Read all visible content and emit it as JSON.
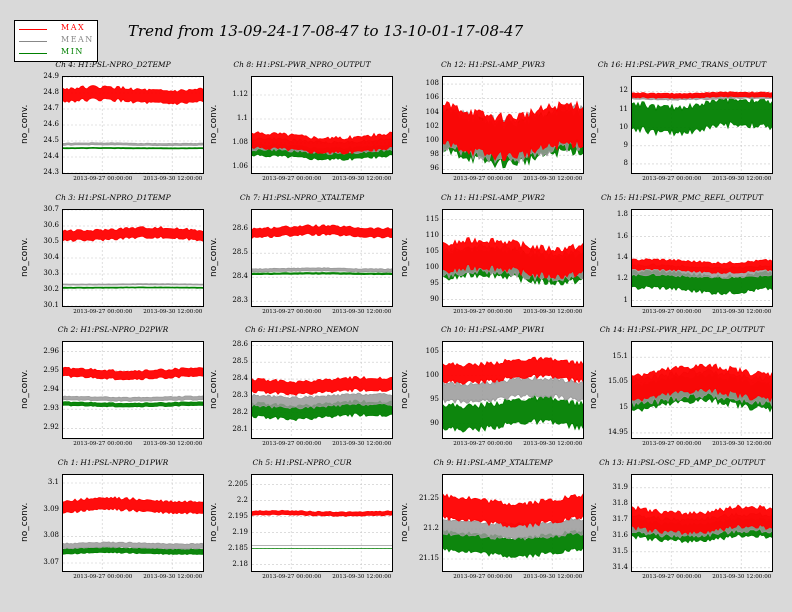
{
  "title": "Trend from 13-09-24-17-08-47 to 13-10-01-17-08-47",
  "legend": [
    {
      "label": "MAX",
      "color": "#ff0000"
    },
    {
      "label": "MEAN",
      "color": "#888888"
    },
    {
      "label": "MIN",
      "color": "#008000"
    }
  ],
  "colors": {
    "max": "#ff0000",
    "mean": "#999999",
    "min": "#008000",
    "background": "#d9d9d9"
  },
  "chart_data": [
    {
      "type": "line",
      "title": "Ch 4: H1:PSL-NPRO_D2TEMP",
      "ylabel": "no_conv.",
      "xticks": [
        "2013-09-27 00:00:00",
        "2013-09-30 12:00:00"
      ],
      "yticks": [
        "24.3",
        "24.4",
        "24.5",
        "24.6",
        "24.7",
        "24.8",
        "24.9"
      ],
      "ylim": [
        24.3,
        24.9
      ],
      "grid": true,
      "series": [
        {
          "name": "MAX",
          "low": 24.72,
          "high": 24.85
        },
        {
          "name": "MEAN",
          "low": 24.47,
          "high": 24.49
        },
        {
          "name": "MIN",
          "low": 24.45,
          "high": 24.46
        }
      ]
    },
    {
      "type": "line",
      "title": "Ch 8: H1:PSL-PWR_NPRO_OUTPUT",
      "ylabel": "no_conv.",
      "xticks": [
        "2013-09-27 00:00:00",
        "2013-09-30 12:00:00"
      ],
      "yticks": [
        "1.06",
        "1.08",
        "1.1",
        "1.12"
      ],
      "ylim": [
        1.055,
        1.135
      ],
      "grid": true,
      "series": [
        {
          "name": "MAX",
          "low": 1.07,
          "high": 1.09
        },
        {
          "name": "MEAN",
          "low": 1.07,
          "high": 1.085
        },
        {
          "name": "MIN",
          "low": 1.065,
          "high": 1.08
        }
      ]
    },
    {
      "type": "line",
      "title": "Ch 12: H1:PSL-AMP_PWR3",
      "ylabel": "no_conv.",
      "xticks": [
        "2013-09-27 00:00:00",
        "2013-09-30 12:00:00"
      ],
      "yticks": [
        "96",
        "98",
        "100",
        "102",
        "104",
        "106",
        "108"
      ],
      "ylim": [
        95.5,
        109
      ],
      "grid": true,
      "series": [
        {
          "name": "MAX",
          "low": 97,
          "high": 106
        },
        {
          "name": "MEAN",
          "low": 96.5,
          "high": 105.5
        },
        {
          "name": "MIN",
          "low": 96,
          "high": 105
        }
      ]
    },
    {
      "type": "line",
      "title": "Ch 16: H1:PSL-PWR_PMC_TRANS_OUTPUT",
      "ylabel": "no_conv.",
      "xticks": [
        "2013-09-27 00:00:00",
        "2013-09-30 12:00:00"
      ],
      "yticks": [
        "8",
        "9",
        "10",
        "11",
        "12"
      ],
      "ylim": [
        7.5,
        12.8
      ],
      "grid": true,
      "series": [
        {
          "name": "MAX",
          "low": 11.6,
          "high": 12.0
        },
        {
          "name": "MEAN",
          "low": 11.5,
          "high": 11.9
        },
        {
          "name": "MIN",
          "low": 9.5,
          "high": 11.8
        }
      ]
    },
    {
      "type": "line",
      "title": "Ch 3: H1:PSL-NPRO_D1TEMP",
      "ylabel": "no_conv.",
      "xticks": [
        "2013-09-27 00:00:00",
        "2013-09-30 12:00:00"
      ],
      "yticks": [
        "30.1",
        "30.2",
        "30.3",
        "30.4",
        "30.5",
        "30.6",
        "30.7"
      ],
      "ylim": [
        30.1,
        30.7
      ],
      "grid": true,
      "series": [
        {
          "name": "MAX",
          "low": 30.5,
          "high": 30.6
        },
        {
          "name": "MEAN",
          "low": 30.23,
          "high": 30.24
        },
        {
          "name": "MIN",
          "low": 30.21,
          "high": 30.22
        }
      ]
    },
    {
      "type": "line",
      "title": "Ch 7: H1:PSL-NPRO_XTALTEMP",
      "ylabel": "no_conv.",
      "xticks": [
        "2013-09-27 00:00:00",
        "2013-09-30 12:00:00"
      ],
      "yticks": [
        "28.3",
        "28.4",
        "28.5",
        "28.6"
      ],
      "ylim": [
        28.28,
        28.68
      ],
      "grid": true,
      "series": [
        {
          "name": "MAX",
          "low": 28.56,
          "high": 28.62
        },
        {
          "name": "MEAN",
          "low": 28.42,
          "high": 28.44
        },
        {
          "name": "MIN",
          "low": 28.41,
          "high": 28.42
        }
      ]
    },
    {
      "type": "line",
      "title": "Ch 11: H1:PSL-AMP_PWR2",
      "ylabel": "no_conv.",
      "xticks": [
        "2013-09-27 00:00:00",
        "2013-09-30 12:00:00"
      ],
      "yticks": [
        "90",
        "95",
        "100",
        "105",
        "110",
        "115"
      ],
      "ylim": [
        88,
        118
      ],
      "grid": true,
      "series": [
        {
          "name": "MAX",
          "low": 96,
          "high": 110
        },
        {
          "name": "MEAN",
          "low": 95,
          "high": 108
        },
        {
          "name": "MIN",
          "low": 94,
          "high": 107
        }
      ]
    },
    {
      "type": "line",
      "title": "Ch 15: H1:PSL-PWR_PMC_REFL_OUTPUT",
      "ylabel": "no_conv.",
      "xticks": [
        "2013-09-27 00:00:00",
        "2013-09-30 12:00:00"
      ],
      "yticks": [
        "1",
        "1.2",
        "1.4",
        "1.6",
        "1.8"
      ],
      "ylim": [
        0.95,
        1.85
      ],
      "grid": true,
      "series": [
        {
          "name": "MAX",
          "low": 1.25,
          "high": 1.4
        },
        {
          "name": "MEAN",
          "low": 1.2,
          "high": 1.35
        },
        {
          "name": "MIN",
          "low": 1.05,
          "high": 1.3
        }
      ]
    },
    {
      "type": "line",
      "title": "Ch 2: H1:PSL-NPRO_D2PWR",
      "ylabel": "no_conv.",
      "xticks": [
        "2013-09-27 00:00:00",
        "2013-09-30 12:00:00"
      ],
      "yticks": [
        "2.92",
        "2.93",
        "2.94",
        "2.95",
        "2.96"
      ],
      "ylim": [
        2.915,
        2.965
      ],
      "grid": true,
      "series": [
        {
          "name": "MAX",
          "low": 2.945,
          "high": 2.952
        },
        {
          "name": "MEAN",
          "low": 2.934,
          "high": 2.937
        },
        {
          "name": "MIN",
          "low": 2.931,
          "high": 2.934
        }
      ]
    },
    {
      "type": "line",
      "title": "Ch 6: H1:PSL-NPRO_NEMON",
      "ylabel": "no_conv.",
      "xticks": [
        "2013-09-27 00:00:00",
        "2013-09-30 12:00:00"
      ],
      "yticks": [
        "28.1",
        "28.2",
        "28.3",
        "28.4",
        "28.5",
        "28.6"
      ],
      "ylim": [
        28.05,
        28.62
      ],
      "grid": true,
      "series": [
        {
          "name": "MAX",
          "low": 28.3,
          "high": 28.42
        },
        {
          "name": "MEAN",
          "low": 28.22,
          "high": 28.32
        },
        {
          "name": "MIN",
          "low": 28.15,
          "high": 28.28
        }
      ]
    },
    {
      "type": "line",
      "title": "Ch 10: H1:PSL-AMP_PWR1",
      "ylabel": "no_conv.",
      "xticks": [
        "2013-09-27 00:00:00",
        "2013-09-30 12:00:00"
      ],
      "yticks": [
        "90",
        "95",
        "100",
        "105"
      ],
      "ylim": [
        87,
        107
      ],
      "grid": true,
      "series": [
        {
          "name": "MAX",
          "low": 98,
          "high": 104
        },
        {
          "name": "MEAN",
          "low": 94,
          "high": 100
        },
        {
          "name": "MIN",
          "low": 88,
          "high": 96
        }
      ]
    },
    {
      "type": "line",
      "title": "Ch 14: H1:PSL-PWR_HPL_DC_LP_OUTPUT",
      "ylabel": "no_conv.",
      "xticks": [
        "2013-09-27 00:00:00",
        "2013-09-30 12:00:00"
      ],
      "yticks": [
        "14.95",
        "15",
        "15.05",
        "15.1"
      ],
      "ylim": [
        14.94,
        15.13
      ],
      "grid": true,
      "series": [
        {
          "name": "MAX",
          "low": 15.01,
          "high": 15.09
        },
        {
          "name": "MEAN",
          "low": 15.0,
          "high": 15.08
        },
        {
          "name": "MIN",
          "low": 14.99,
          "high": 15.07
        }
      ]
    },
    {
      "type": "line",
      "title": "Ch 1: H1:PSL-NPRO_D1PWR",
      "ylabel": "no_conv.",
      "xticks": [
        "2013-09-27 00:00:00",
        "2013-09-30 12:00:00"
      ],
      "yticks": [
        "3.07",
        "3.08",
        "3.09",
        "3.1"
      ],
      "ylim": [
        3.067,
        3.103
      ],
      "grid": true,
      "series": [
        {
          "name": "MAX",
          "low": 3.088,
          "high": 3.095
        },
        {
          "name": "MEAN",
          "low": 3.075,
          "high": 3.078
        },
        {
          "name": "MIN",
          "low": 3.073,
          "high": 3.076
        }
      ]
    },
    {
      "type": "line",
      "title": "Ch 5: H1:PSL-NPRO_CUR",
      "ylabel": "no_conv.",
      "xticks": [
        "2013-09-27 00:00:00",
        "2013-09-30 12:00:00"
      ],
      "yticks": [
        "2.18",
        "2.185",
        "2.19",
        "2.195",
        "2.2",
        "2.205"
      ],
      "ylim": [
        2.178,
        2.208
      ],
      "grid": true,
      "series": [
        {
          "name": "MAX",
          "low": 2.195,
          "high": 2.197
        },
        {
          "name": "MEAN",
          "low": 2.186,
          "high": 2.186
        },
        {
          "name": "MIN",
          "low": 2.185,
          "high": 2.185
        }
      ]
    },
    {
      "type": "line",
      "title": "Ch 9: H1:PSL-AMP_XTALTEMP",
      "ylabel": "no_conv.",
      "xticks": [
        "2013-09-27 00:00:00",
        "2013-09-30 12:00:00"
      ],
      "yticks": [
        "21.15",
        "21.2",
        "21.25"
      ],
      "ylim": [
        21.13,
        21.29
      ],
      "grid": true,
      "series": [
        {
          "name": "MAX",
          "low": 21.2,
          "high": 21.26
        },
        {
          "name": "MEAN",
          "low": 21.18,
          "high": 21.22
        },
        {
          "name": "MIN",
          "low": 21.15,
          "high": 21.2
        }
      ]
    },
    {
      "type": "line",
      "title": "Ch 13: H1:PSL-OSC_FD_AMP_DC_OUTPUT",
      "ylabel": "no_conv.",
      "xticks": [
        "2013-09-27 00:00:00",
        "2013-09-30 12:00:00"
      ],
      "yticks": [
        "31.4",
        "31.5",
        "31.6",
        "31.7",
        "31.8",
        "31.9"
      ],
      "ylim": [
        31.38,
        31.98
      ],
      "grid": true,
      "series": [
        {
          "name": "MAX",
          "low": 31.6,
          "high": 31.8
        },
        {
          "name": "MEAN",
          "low": 31.58,
          "high": 31.75
        },
        {
          "name": "MIN",
          "low": 31.55,
          "high": 31.72
        }
      ]
    }
  ]
}
